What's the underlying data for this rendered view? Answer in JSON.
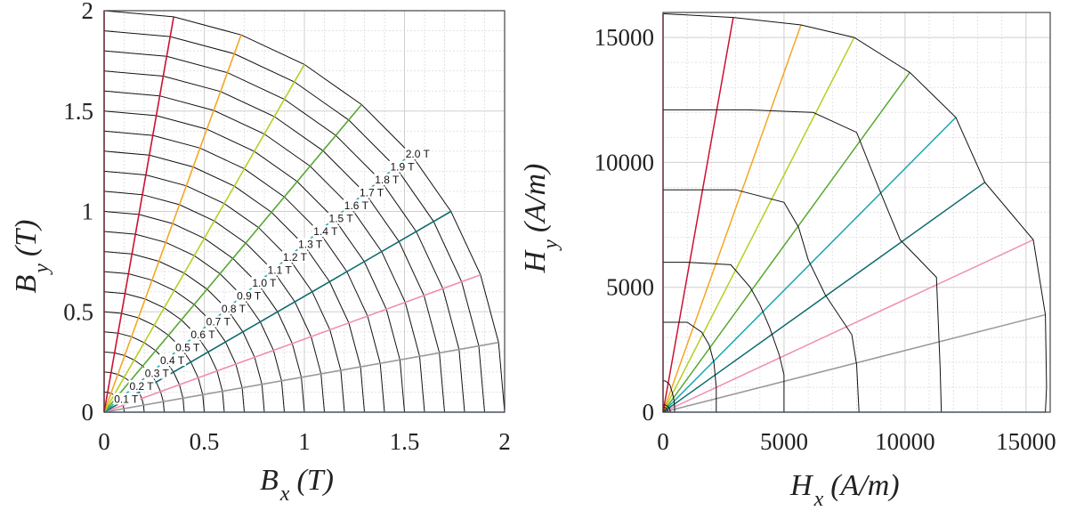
{
  "chart_data": [
    {
      "type": "line",
      "panel": "left",
      "x_label": {
        "main": "B",
        "sub": "x",
        "unit": "(T)"
      },
      "y_label": {
        "main": "B",
        "sub": "y",
        "unit": "(T)"
      },
      "xlim": [
        0,
        2
      ],
      "ylim": [
        0,
        2
      ],
      "xticks": [
        0,
        0.5,
        1,
        1.5,
        2
      ],
      "yticks": [
        0,
        0.5,
        1,
        1.5,
        2
      ],
      "xtick_labels": [
        "0",
        "0.5",
        "1",
        "1.5",
        "2"
      ],
      "ytick_labels": [
        "0",
        "0.5",
        "1",
        "1.5",
        "2"
      ],
      "grid": true,
      "rays": [
        {
          "angle_deg": 0,
          "color": "#7aa6e0"
        },
        {
          "angle_deg": 10,
          "color": "#999999"
        },
        {
          "angle_deg": 20,
          "color": "#ef8fb0"
        },
        {
          "angle_deg": 30,
          "color": "#0f6b72"
        },
        {
          "angle_deg": 40,
          "color": "#1aa5b3"
        },
        {
          "angle_deg": 50,
          "color": "#57a832"
        },
        {
          "angle_deg": 60,
          "color": "#b5cf24"
        },
        {
          "angle_deg": 70,
          "color": "#f5a623"
        },
        {
          "angle_deg": 80,
          "color": "#cc1133"
        },
        {
          "angle_deg": 90,
          "color": "#cc1133"
        }
      ],
      "contour_radii_T": [
        0.1,
        0.2,
        0.3,
        0.4,
        0.5,
        0.6,
        0.7,
        0.8,
        0.9,
        1.0,
        1.1,
        1.2,
        1.3,
        1.4,
        1.5,
        1.6,
        1.7,
        1.8,
        1.9,
        2.0
      ],
      "level_labels": [
        "0.1 T",
        "0.2 T",
        "0.3 T",
        "0.4 T",
        "0.5 T",
        "0.6 T",
        "0.7 T",
        "0.8 T",
        "0.9 T",
        "1.0 T",
        "1.1 T",
        "1.2 T",
        "1.3 T",
        "1.4 T",
        "1.5 T",
        "1.6 T",
        "1.7 T",
        "1.8 T",
        "1.9 T",
        "2.0 T"
      ]
    },
    {
      "type": "line",
      "panel": "right",
      "x_label": {
        "main": "H",
        "sub": "x",
        "unit": "(A/m)"
      },
      "y_label": {
        "main": "H",
        "sub": "y",
        "unit": "(A/m)"
      },
      "xlim": [
        0,
        16000
      ],
      "ylim": [
        0,
        16000
      ],
      "xticks": [
        0,
        5000,
        10000,
        15000
      ],
      "yticks": [
        0,
        5000,
        10000,
        15000
      ],
      "xtick_labels": [
        "0",
        "5000",
        "10000",
        "15000"
      ],
      "ytick_labels": [
        "0",
        "5000",
        "10000",
        "15000"
      ],
      "grid": true,
      "ray_colors": [
        "#7aa6e0",
        "#999999",
        "#ef8fb0",
        "#0f6b72",
        "#1aa5b3",
        "#57a832",
        "#b5cf24",
        "#f5a623",
        "#cc1133",
        "#cc1133"
      ],
      "contours": [
        {
          "B_T": 2.0,
          "points": [
            [
              15800,
              0
            ],
            [
              15850,
              1000
            ],
            [
              15800,
              3900
            ],
            [
              15300,
              6900
            ],
            [
              13300,
              9200
            ],
            [
              12100,
              11800
            ],
            [
              10200,
              13600
            ],
            [
              7900,
              15000
            ],
            [
              5700,
              15500
            ],
            [
              2900,
              15800
            ],
            [
              0,
              15950
            ]
          ]
        },
        {
          "B_T": 1.9,
          "points": [
            [
              11500,
              0
            ],
            [
              11450,
              1800
            ],
            [
              11300,
              5400
            ],
            [
              9800,
              6900
            ],
            [
              8900,
              9000
            ],
            [
              8000,
              11200
            ],
            [
              6200,
              12000
            ],
            [
              3500,
              12100
            ],
            [
              0,
              12100
            ]
          ]
        },
        {
          "B_T": 1.8,
          "points": [
            [
              8100,
              0
            ],
            [
              8000,
              1900
            ],
            [
              7800,
              3100
            ],
            [
              6700,
              4700
            ],
            [
              6000,
              6100
            ],
            [
              5600,
              7400
            ],
            [
              5000,
              8400
            ],
            [
              3000,
              8900
            ],
            [
              1200,
              8900
            ],
            [
              0,
              8900
            ]
          ]
        },
        {
          "B_T": 1.7,
          "points": [
            [
              5000,
              0
            ],
            [
              5000,
              1500
            ],
            [
              4800,
              2300
            ],
            [
              4400,
              3400
            ],
            [
              4000,
              4300
            ],
            [
              3600,
              5000
            ],
            [
              2800,
              5900
            ],
            [
              1000,
              6000
            ],
            [
              0,
              6000
            ]
          ]
        },
        {
          "B_T": 1.6,
          "points": [
            [
              2200,
              0
            ],
            [
              2200,
              1000
            ],
            [
              2100,
              2000
            ],
            [
              1900,
              2700
            ],
            [
              1600,
              3200
            ],
            [
              1000,
              3600
            ],
            [
              300,
              3600
            ],
            [
              0,
              3600
            ]
          ]
        },
        {
          "B_T": 1.5,
          "points": [
            [
              480,
              0
            ],
            [
              480,
              200
            ],
            [
              450,
              500
            ],
            [
              380,
              800
            ],
            [
              280,
              1100
            ],
            [
              100,
              1250
            ],
            [
              0,
              1250
            ]
          ]
        }
      ],
      "cluster_near_origin": true
    }
  ]
}
